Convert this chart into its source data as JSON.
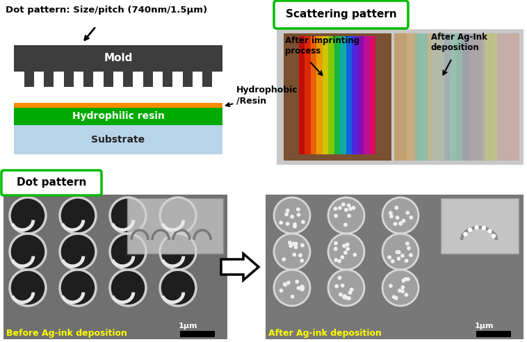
{
  "bg_color": "#ffffff",
  "title_dot_pattern": "Dot pattern: Size/pitch (740nm/1.5μm)",
  "label_mold": "Mold",
  "label_hydrophilic": "Hydrophilic resin",
  "label_substrate": "Substrate",
  "label_hydrophobic": "Hydrophobic\n/Resin",
  "label_scattering": "Scattering pattern",
  "label_after_imprint": "After imprinting\nprocess",
  "label_after_agink1": "After Ag-Ink\ndeposition",
  "label_dot_pattern": "Dot pattern",
  "label_before": "Before Ag-ink deposition",
  "label_after_dep": "After Ag-ink deposition",
  "label_1um": "1μm",
  "mold_color": "#3d3d3d",
  "hydrophobic_color": "#ff8c00",
  "hydrophilic_color": "#00aa00",
  "substrate_color": "#b8d4e8",
  "box_border_color": "#00bb00",
  "sem1_bg": "#707070",
  "sem2_bg": "#787878"
}
